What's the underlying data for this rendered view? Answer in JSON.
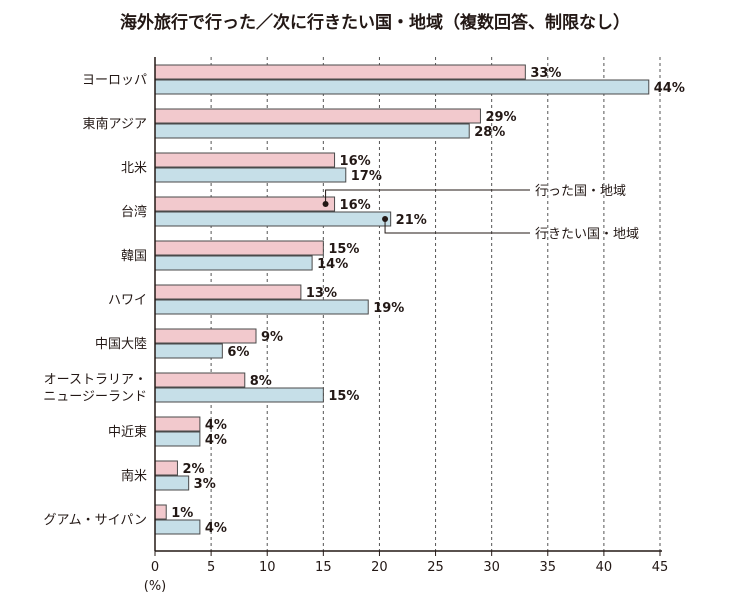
{
  "chart_data": {
    "type": "bar",
    "orientation": "horizontal",
    "title": "海外旅行で行った／次に行きたい国・地域（複数回答、制限なし）",
    "xlabel": "(%)",
    "xlim": [
      0,
      45
    ],
    "xticks": [
      0,
      5,
      10,
      15,
      20,
      25,
      30,
      35,
      40,
      45
    ],
    "grid": "vertical dashed",
    "categories": [
      "ヨーロッパ",
      "東南アジア",
      "北米",
      "台湾",
      "韓国",
      "ハワイ",
      "中国大陸",
      "オーストラリア・\nニュージーランド",
      "中近東",
      "南米",
      "グアム・サイパン"
    ],
    "series": [
      {
        "name": "行った国・地域",
        "color": "#f2c9cd",
        "values": [
          33,
          29,
          16,
          16,
          15,
          13,
          9,
          8,
          4,
          2,
          1
        ]
      },
      {
        "name": "行きたい国・地域",
        "color": "#c6dfe8",
        "values": [
          44,
          28,
          17,
          21,
          14,
          19,
          6,
          15,
          4,
          3,
          4
        ]
      }
    ],
    "value_suffix": "%",
    "legend": "callout annotations on 台湾 bars"
  }
}
